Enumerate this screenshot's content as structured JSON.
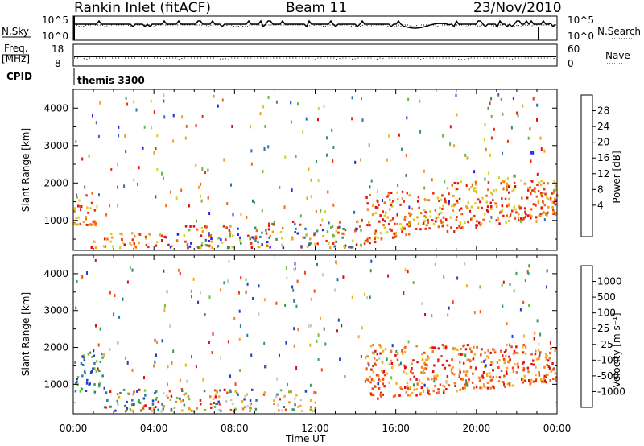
{
  "header": {
    "station": "Rankin Inlet (fitACF)",
    "beam": "Beam 11",
    "date": "23/Nov/2010"
  },
  "status_panels": {
    "nsky_label": "N.Sky",
    "nsearch_label": "N.Search",
    "nsky_ticks": [
      "10^5",
      "10^0"
    ],
    "nsearch_ticks": [
      "10^5",
      "10^0"
    ],
    "freq_label_1": "Freq.",
    "freq_label_2": "[MHz]",
    "freq_ticks": [
      "18",
      "8"
    ],
    "nave_label": "Nave",
    "nave_ticks": [
      "60",
      "0"
    ],
    "cpid_label": "CPID",
    "cpid_value": "themis 3300"
  },
  "chart_data": [
    {
      "type": "heatmap",
      "name": "power",
      "ylabel": "Slant Range [km]",
      "xlabel": "",
      "x_ticks": [
        "00:00",
        "04:00",
        "08:00",
        "12:00",
        "16:00",
        "20:00",
        "00:00"
      ],
      "xlim_hours": [
        0,
        24
      ],
      "ylim": [
        200,
        4500
      ],
      "y_ticks": [
        1000,
        2000,
        3000,
        4000
      ],
      "colorbar": {
        "label": "Power [dB]",
        "ticks": [
          "28",
          "24",
          "20",
          "16",
          "12",
          "8",
          "4"
        ],
        "colors": [
          "#2222ee",
          "#2e6fb0",
          "#3a8f6a",
          "#6ab44a",
          "#d8d020",
          "#f0a020",
          "#f06a10",
          "#e83010",
          "#e01010"
        ]
      },
      "features": [
        {
          "start_hour": 0.0,
          "end_hour": 1.2,
          "range_low": 900,
          "range_high": 1900,
          "level": "high"
        },
        {
          "start_hour": 0.8,
          "end_hour": 4.5,
          "range_low": 300,
          "range_high": 700,
          "level": "high"
        },
        {
          "start_hour": 4.5,
          "end_hour": 9.5,
          "range_low": 300,
          "range_high": 900,
          "level": "mixed"
        },
        {
          "start_hour": 9.5,
          "end_hour": 14.5,
          "range_low": 300,
          "range_high": 1000,
          "level": "mixed"
        },
        {
          "start_hour": 14.5,
          "end_hour": 18.5,
          "range_low": 400,
          "range_high": 1800,
          "level": "high"
        },
        {
          "start_hour": 18.5,
          "end_hour": 24.0,
          "range_low": 700,
          "range_high": 2100,
          "level": "high"
        }
      ]
    },
    {
      "type": "heatmap",
      "name": "velocity",
      "ylabel": "Slant Range [km]",
      "xlabel": "Time UT",
      "x_ticks": [
        "00:00",
        "04:00",
        "08:00",
        "12:00",
        "16:00",
        "20:00",
        "00:00"
      ],
      "xlim_hours": [
        0,
        24
      ],
      "ylim": [
        200,
        4500
      ],
      "y_ticks": [
        1000,
        2000,
        3000,
        4000
      ],
      "colorbar": {
        "label": "Velocity [m s⁻¹]",
        "ticks": [
          "1000",
          "500",
          "100",
          "25",
          "-25",
          "-100",
          "-500",
          "-1000"
        ],
        "colors": [
          "#2040c8",
          "#2a7a9a",
          "#3a9a5a",
          "#70c040",
          "#c8c8c8",
          "#f0b020",
          "#f08020",
          "#f04a10",
          "#e01010"
        ]
      },
      "features": [
        {
          "start_hour": 0.0,
          "end_hour": 1.5,
          "range_low": 800,
          "range_high": 1900,
          "level": "towards"
        },
        {
          "start_hour": 1.5,
          "end_hour": 12.0,
          "range_low": 300,
          "range_high": 900,
          "level": "mixed"
        },
        {
          "start_hour": 14.5,
          "end_hour": 24.0,
          "range_low": 600,
          "range_high": 2100,
          "level": "away"
        }
      ]
    }
  ]
}
